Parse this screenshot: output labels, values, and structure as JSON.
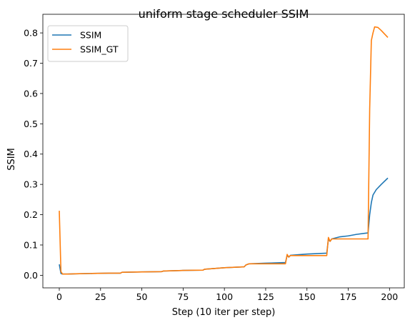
{
  "chart_data": {
    "type": "line",
    "title": "uniform stage scheduler SSIM",
    "xlabel": "Step (10 iter per step)",
    "ylabel": "SSIM",
    "xlim": [
      -9.95,
      208.95
    ],
    "ylim": [
      -0.0415,
      0.8615
    ],
    "xticks": [
      0,
      25,
      50,
      75,
      100,
      125,
      150,
      175,
      200
    ],
    "yticks": [
      0.0,
      0.1,
      0.2,
      0.3,
      0.4,
      0.5,
      0.6,
      0.7,
      0.8
    ],
    "xtick_labels": [
      "0",
      "25",
      "50",
      "75",
      "100",
      "125",
      "150",
      "175",
      "200"
    ],
    "ytick_labels": [
      "0.0",
      "0.1",
      "0.2",
      "0.3",
      "0.4",
      "0.5",
      "0.6",
      "0.7",
      "0.8"
    ],
    "grid": false,
    "legend_position": "top-left",
    "series": [
      {
        "name": "SSIM",
        "color": "#1f77b4",
        "x": [
          0,
          1,
          2,
          5,
          10,
          20,
          30,
          37,
          38,
          50,
          62,
          63,
          75,
          87,
          88,
          100,
          112,
          113,
          115,
          125,
          137,
          138,
          139,
          140,
          150,
          162,
          163,
          164,
          165,
          170,
          175,
          180,
          187,
          188,
          189,
          190,
          192,
          195,
          199
        ],
        "y": [
          0.036,
          0.006,
          0.004,
          0.004,
          0.005,
          0.006,
          0.007,
          0.007,
          0.01,
          0.011,
          0.012,
          0.014,
          0.016,
          0.017,
          0.02,
          0.025,
          0.028,
          0.034,
          0.038,
          0.04,
          0.042,
          0.066,
          0.06,
          0.066,
          0.07,
          0.073,
          0.12,
          0.112,
          0.12,
          0.127,
          0.13,
          0.135,
          0.14,
          0.2,
          0.24,
          0.265,
          0.283,
          0.3,
          0.321
        ]
      },
      {
        "name": "SSIM_GT",
        "color": "#ff7f0e",
        "x": [
          0,
          1,
          2,
          5,
          10,
          20,
          30,
          37,
          38,
          50,
          62,
          63,
          75,
          87,
          88,
          100,
          112,
          113,
          115,
          125,
          137,
          138,
          139,
          140,
          150,
          162,
          163,
          164,
          165,
          170,
          175,
          180,
          187,
          188,
          189,
          190,
          191,
          193,
          195,
          199
        ],
        "y": [
          0.213,
          0.012,
          0.004,
          0.004,
          0.005,
          0.006,
          0.007,
          0.007,
          0.01,
          0.011,
          0.012,
          0.014,
          0.016,
          0.017,
          0.02,
          0.025,
          0.028,
          0.034,
          0.038,
          0.038,
          0.038,
          0.069,
          0.06,
          0.065,
          0.065,
          0.065,
          0.125,
          0.112,
          0.12,
          0.12,
          0.12,
          0.12,
          0.12,
          0.55,
          0.775,
          0.8,
          0.82,
          0.818,
          0.808,
          0.785
        ]
      }
    ]
  }
}
